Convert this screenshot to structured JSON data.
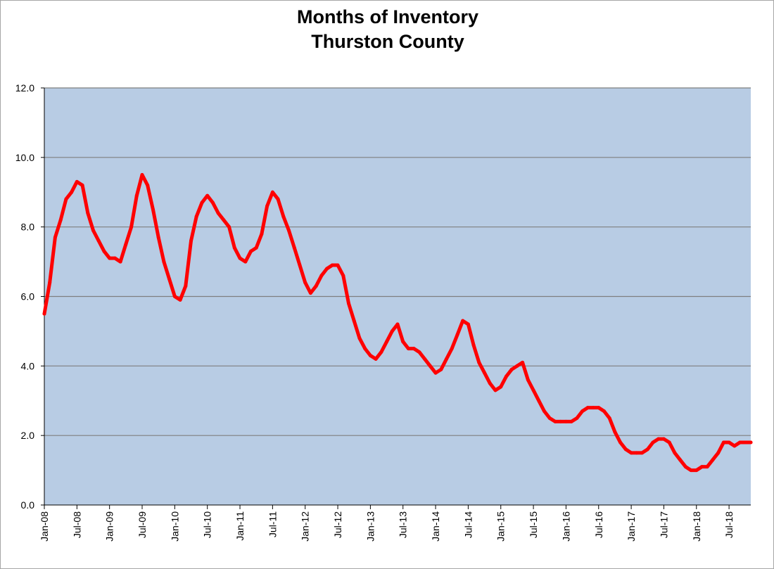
{
  "chart_data": {
    "type": "line",
    "title": "Months of Inventory",
    "subtitle": "Thurston County",
    "xlabel": "",
    "ylabel": "",
    "ylim": [
      0,
      12
    ],
    "yticks": [
      "0.0",
      "2.0",
      "4.0",
      "6.0",
      "8.0",
      "10.0",
      "12.0"
    ],
    "xlim": [
      "2008-01",
      "2018-11"
    ],
    "xticks": [
      "Jan-08",
      "Jul-08",
      "Jan-09",
      "Jul-09",
      "Jan-10",
      "Jul-10",
      "Jan-11",
      "Jul-11",
      "Jan-12",
      "Jul-12",
      "Jan-13",
      "Jul-13",
      "Jan-14",
      "Jul-14",
      "Jan-15",
      "Jul-15",
      "Jan-16",
      "Jul-16",
      "Jan-17",
      "Jul-17",
      "Jan-18",
      "Jul-18"
    ],
    "grid": true,
    "legend": "none",
    "plot_background": "#b8cce4",
    "gridline_color": "#7f7f7f",
    "series": [
      {
        "color": "#ff0000",
        "x": [
          "2008-01",
          "2008-02",
          "2008-03",
          "2008-04",
          "2008-05",
          "2008-06",
          "2008-07",
          "2008-08",
          "2008-09",
          "2008-10",
          "2008-11",
          "2008-12",
          "2009-01",
          "2009-02",
          "2009-03",
          "2009-04",
          "2009-05",
          "2009-06",
          "2009-07",
          "2009-08",
          "2009-09",
          "2009-10",
          "2009-11",
          "2009-12",
          "2010-01",
          "2010-02",
          "2010-03",
          "2010-04",
          "2010-05",
          "2010-06",
          "2010-07",
          "2010-08",
          "2010-09",
          "2010-10",
          "2010-11",
          "2010-12",
          "2011-01",
          "2011-02",
          "2011-03",
          "2011-04",
          "2011-05",
          "2011-06",
          "2011-07",
          "2011-08",
          "2011-09",
          "2011-10",
          "2011-11",
          "2011-12",
          "2012-01",
          "2012-02",
          "2012-03",
          "2012-04",
          "2012-05",
          "2012-06",
          "2012-07",
          "2012-08",
          "2012-09",
          "2012-10",
          "2012-11",
          "2012-12",
          "2013-01",
          "2013-02",
          "2013-03",
          "2013-04",
          "2013-05",
          "2013-06",
          "2013-07",
          "2013-08",
          "2013-09",
          "2013-10",
          "2013-11",
          "2013-12",
          "2014-01",
          "2014-02",
          "2014-03",
          "2014-04",
          "2014-05",
          "2014-06",
          "2014-07",
          "2014-08",
          "2014-09",
          "2014-10",
          "2014-11",
          "2014-12",
          "2015-01",
          "2015-02",
          "2015-03",
          "2015-04",
          "2015-05",
          "2015-06",
          "2015-07",
          "2015-08",
          "2015-09",
          "2015-10",
          "2015-11",
          "2015-12",
          "2016-01",
          "2016-02",
          "2016-03",
          "2016-04",
          "2016-05",
          "2016-06",
          "2016-07",
          "2016-08",
          "2016-09",
          "2016-10",
          "2016-11",
          "2016-12",
          "2017-01",
          "2017-02",
          "2017-03",
          "2017-04",
          "2017-05",
          "2017-06",
          "2017-07",
          "2017-08",
          "2017-09",
          "2017-10",
          "2017-11",
          "2017-12",
          "2018-01",
          "2018-02",
          "2018-03",
          "2018-04",
          "2018-05",
          "2018-06",
          "2018-07",
          "2018-08",
          "2018-09",
          "2018-10",
          "2018-11"
        ],
        "y": [
          5.5,
          6.4,
          7.7,
          8.2,
          8.8,
          9.0,
          9.3,
          9.2,
          8.4,
          7.9,
          7.6,
          7.3,
          7.1,
          7.1,
          7.0,
          7.5,
          8.0,
          8.9,
          9.5,
          9.2,
          8.5,
          7.7,
          7.0,
          6.5,
          6.0,
          5.9,
          6.3,
          7.6,
          8.3,
          8.7,
          8.9,
          8.7,
          8.4,
          8.2,
          8.0,
          7.4,
          7.1,
          7.0,
          7.3,
          7.4,
          7.8,
          8.6,
          9.0,
          8.8,
          8.3,
          7.9,
          7.4,
          6.9,
          6.4,
          6.1,
          6.3,
          6.6,
          6.8,
          6.9,
          6.9,
          6.6,
          5.8,
          5.3,
          4.8,
          4.5,
          4.3,
          4.2,
          4.4,
          4.7,
          5.0,
          5.2,
          4.7,
          4.5,
          4.5,
          4.4,
          4.2,
          4.0,
          3.8,
          3.9,
          4.2,
          4.5,
          4.9,
          5.3,
          5.2,
          4.6,
          4.1,
          3.8,
          3.5,
          3.3,
          3.4,
          3.7,
          3.9,
          4.0,
          4.1,
          3.6,
          3.3,
          3.0,
          2.7,
          2.5,
          2.4,
          2.4,
          2.4,
          2.4,
          2.5,
          2.7,
          2.8,
          2.8,
          2.8,
          2.7,
          2.5,
          2.1,
          1.8,
          1.6,
          1.5,
          1.5,
          1.5,
          1.6,
          1.8,
          1.9,
          1.9,
          1.8,
          1.5,
          1.3,
          1.1,
          1.0,
          1.0,
          1.1,
          1.1,
          1.3,
          1.5,
          1.8,
          1.8,
          1.7,
          1.8,
          1.8,
          1.8
        ]
      }
    ]
  }
}
